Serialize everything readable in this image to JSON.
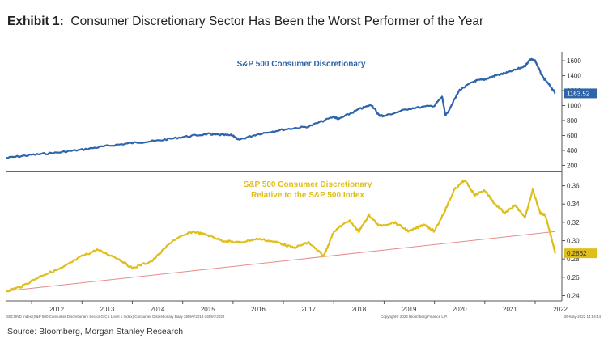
{
  "title": {
    "exhibit": "Exhibit 1:",
    "text": "Consumer Discretionary Sector Has Been the Worst Performer of the Year"
  },
  "source": "Source: Bloomberg, Morgan Stanley Research",
  "footer": {
    "left": "S5COND Index (S&P 500 Consumer Discretionary Sector GICS Level 1 Index) Consumer Discretionary  Daily 26MAY2014-26MAY2022",
    "center": "Copyright© 2022 Bloomberg Finance L.P.",
    "right": "26-May-2022 14:54:44"
  },
  "colors": {
    "top_series": "#2e64a8",
    "bottom_series": "#e0be1a",
    "trendline": "#e88a8a",
    "divider": "#333333"
  },
  "chart_data": [
    {
      "type": "line",
      "title": "S&P 500 Consumer Discretionary",
      "series": [
        {
          "name": "S&P 500 Consumer Discretionary",
          "x": [
            2011.5,
            2012.0,
            2012.5,
            2013.0,
            2013.5,
            2014.0,
            2014.5,
            2015.0,
            2015.5,
            2015.7,
            2016.0,
            2016.1,
            2016.5,
            2017.0,
            2017.5,
            2018.0,
            2018.1,
            2018.5,
            2018.75,
            2018.9,
            2019.0,
            2019.5,
            2020.0,
            2020.15,
            2020.22,
            2020.5,
            2020.8,
            2021.0,
            2021.2,
            2021.5,
            2021.8,
            2021.9,
            2022.0,
            2022.15,
            2022.3,
            2022.4
          ],
          "values": [
            300,
            340,
            370,
            410,
            460,
            500,
            530,
            580,
            620,
            610,
            600,
            540,
            620,
            680,
            720,
            850,
            820,
            950,
            1010,
            870,
            860,
            960,
            1000,
            1120,
            860,
            1210,
            1330,
            1350,
            1400,
            1450,
            1530,
            1620,
            1600,
            1380,
            1260,
            1163.52
          ]
        }
      ],
      "last_value_label": "1163.52",
      "yticks": [
        200,
        400,
        600,
        800,
        1000,
        1200,
        1400,
        1600
      ],
      "ylim": [
        140,
        1720
      ]
    },
    {
      "type": "line",
      "title": "S&P 500 Consumer Discretionary Relative to the S&P 500 Index",
      "series": [
        {
          "name": "S&P 500 Consumer Discretionary Relative to the S&P 500 Index",
          "x": [
            2011.5,
            2011.8,
            2012.2,
            2012.6,
            2013.0,
            2013.3,
            2013.7,
            2014.0,
            2014.4,
            2014.8,
            2015.2,
            2015.5,
            2015.8,
            2016.1,
            2016.5,
            2016.9,
            2017.2,
            2017.5,
            2017.8,
            2018.0,
            2018.3,
            2018.5,
            2018.7,
            2018.9,
            2019.2,
            2019.5,
            2019.8,
            2020.0,
            2020.2,
            2020.4,
            2020.6,
            2020.8,
            2021.0,
            2021.2,
            2021.4,
            2021.6,
            2021.8,
            2021.95,
            2022.1,
            2022.2,
            2022.3,
            2022.4
          ],
          "values": [
            0.245,
            0.25,
            0.262,
            0.27,
            0.283,
            0.29,
            0.281,
            0.27,
            0.278,
            0.3,
            0.31,
            0.306,
            0.3,
            0.298,
            0.302,
            0.298,
            0.292,
            0.298,
            0.283,
            0.31,
            0.322,
            0.31,
            0.328,
            0.316,
            0.32,
            0.31,
            0.318,
            0.31,
            0.332,
            0.356,
            0.366,
            0.35,
            0.355,
            0.34,
            0.33,
            0.338,
            0.326,
            0.355,
            0.33,
            0.328,
            0.308,
            0.2862
          ]
        },
        {
          "name": "",
          "x": [
            2011.5,
            2022.4
          ],
          "values": [
            0.245,
            0.31
          ]
        }
      ],
      "last_value_label": "0.2862",
      "yticks": [
        0.24,
        0.26,
        0.28,
        0.3,
        0.32,
        0.34,
        0.36
      ],
      "ylim": [
        0.236,
        0.372
      ]
    }
  ],
  "xaxis": {
    "labels": [
      "2012",
      "2013",
      "2014",
      "2015",
      "2016",
      "2017",
      "2018",
      "2019",
      "2020",
      "2021",
      "2022"
    ],
    "xlim": [
      2011.5,
      2022.45
    ]
  }
}
